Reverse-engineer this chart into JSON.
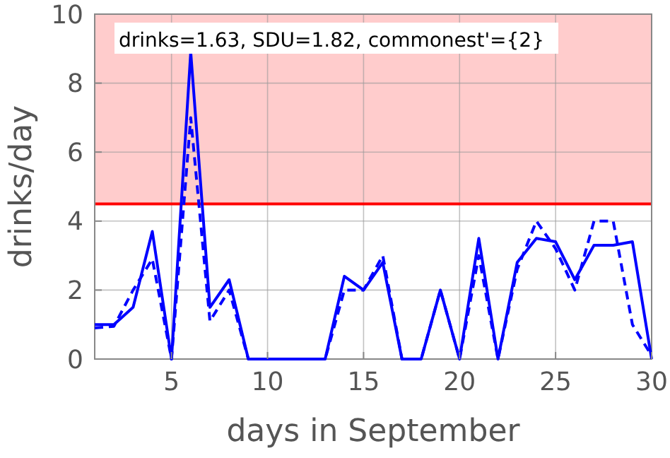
{
  "chart_data": {
    "type": "line",
    "xlabel": "days in September",
    "ylabel": "drinks/day",
    "x": [
      1,
      2,
      3,
      4,
      5,
      6,
      7,
      8,
      9,
      10,
      11,
      12,
      13,
      14,
      15,
      16,
      17,
      18,
      19,
      20,
      21,
      22,
      23,
      24,
      25,
      26,
      27,
      28,
      29,
      30
    ],
    "series": [
      {
        "color": "#0000ff",
        "line_style": "solid",
        "values": [
          1.0,
          1.0,
          1.5,
          3.7,
          0,
          8.9,
          1.5,
          2.3,
          0,
          0,
          0,
          0,
          0,
          2.4,
          2.0,
          2.8,
          0,
          0,
          2.0,
          0,
          3.5,
          0,
          2.8,
          3.5,
          3.4,
          2.3,
          3.3,
          3.3,
          3.4,
          0
        ]
      },
      {
        "color": "#0000ff",
        "line_style": "dashed",
        "values": [
          0.9,
          0.95,
          2.0,
          2.9,
          0,
          7.0,
          1.1,
          2.0,
          0,
          0,
          0,
          0,
          0,
          2.0,
          2.0,
          3.0,
          0,
          0,
          2.0,
          0,
          3.0,
          0,
          2.6,
          4.0,
          3.2,
          2.0,
          4.0,
          4.0,
          1.0,
          0.1
        ]
      }
    ],
    "xlim": [
      1,
      30
    ],
    "ylim": [
      0,
      10
    ],
    "xticks": [
      5,
      10,
      15,
      20,
      25,
      30
    ],
    "yticks": [
      0,
      2,
      4,
      6,
      8,
      10
    ],
    "grid": true,
    "bands": [
      {
        "axis": "y",
        "from": 4.5,
        "to": 10,
        "color": "#ffcccc"
      }
    ],
    "ref_lines": [
      {
        "axis": "y",
        "value": 4.5,
        "color": "#ff0000"
      }
    ],
    "annotations": [
      "drinks=1.63, SDU=1.82, commonest'={2}"
    ]
  }
}
